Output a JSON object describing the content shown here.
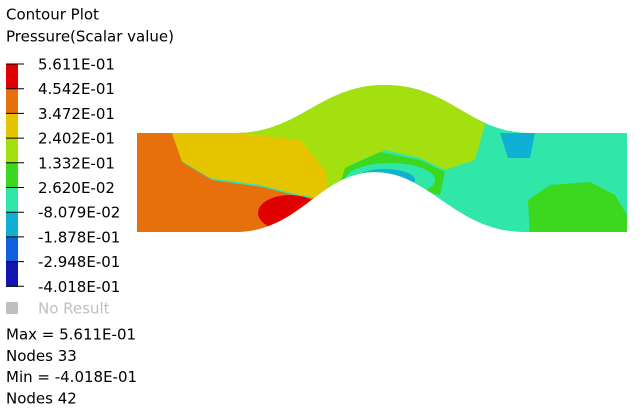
{
  "header": {
    "title": "Contour Plot",
    "subtitle": "Pressure(Scalar value)"
  },
  "legend": {
    "levels": [
      "5.611E-01",
      "4.542E-01",
      "3.472E-01",
      "2.402E-01",
      "1.332E-01",
      "2.620E-02",
      "-8.079E-02",
      "-1.878E-01",
      "-2.948E-01",
      "-4.018E-01"
    ],
    "band_colors": [
      "#e00000",
      "#e8700c",
      "#e6c400",
      "#a4e010",
      "#3cd820",
      "#30e6a8",
      "#10b0d4",
      "#1060e0",
      "#1414b0"
    ],
    "no_result": "No Result"
  },
  "stats": [
    "Max =  5.611E-01",
    "Nodes 33",
    "Min = -4.018E-01",
    "Nodes 42"
  ]
}
